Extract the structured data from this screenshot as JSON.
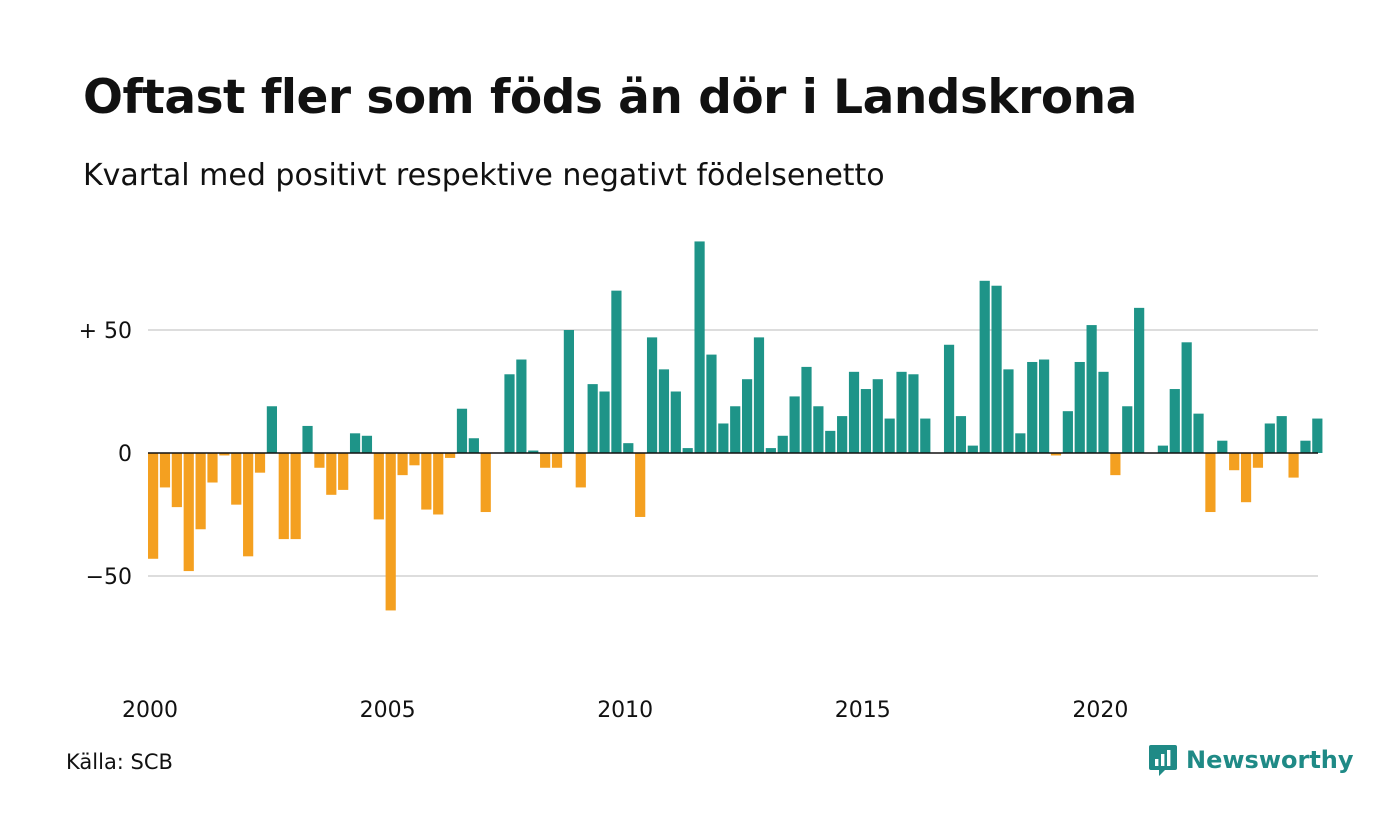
{
  "chart_data": {
    "type": "bar",
    "title": "Oftast fler som föds än dör i Landskrona",
    "subtitle": "Kvartal med positivt respektive negativt födelsenetto",
    "xlabel": "",
    "ylabel": "",
    "x_tick_labels": [
      "2000",
      "2005",
      "2010",
      "2015",
      "2020"
    ],
    "x_tick_values": [
      2000,
      2005,
      2010,
      2015,
      2020
    ],
    "y_tick_labels": [
      "+ 50",
      "0",
      "−50"
    ],
    "y_tick_values": [
      50,
      0,
      -50
    ],
    "ylim": [
      -75,
      90
    ],
    "grid": true,
    "legend": "none",
    "x_start": 2000.0,
    "x_step": 0.25,
    "values": [
      -43,
      -14,
      -22,
      -48,
      -31,
      -12,
      -1,
      -21,
      -42,
      -8,
      19,
      -35,
      -35,
      11,
      -6,
      -17,
      -15,
      8,
      7,
      -27,
      -64,
      -9,
      -5,
      -23,
      -25,
      -2,
      18,
      6,
      -24,
      0,
      32,
      38,
      1,
      -6,
      -6,
      50,
      -14,
      28,
      25,
      66,
      4,
      -26,
      47,
      34,
      25,
      2,
      86,
      40,
      12,
      19,
      30,
      47,
      2,
      7,
      23,
      35,
      19,
      9,
      15,
      33,
      26,
      30,
      14,
      33,
      32,
      14,
      0,
      44,
      15,
      3,
      70,
      68,
      34,
      8,
      37,
      38,
      -1,
      17,
      37,
      52,
      33,
      -9,
      19,
      59,
      0,
      3,
      26,
      45,
      16,
      -24,
      5,
      -7,
      -20,
      -6,
      12,
      15,
      -10,
      5,
      14
    ],
    "colors": {
      "positive": "#1e9488",
      "negative": "#f4a020"
    }
  },
  "footer": {
    "source": "Källa: SCB",
    "brand": "Newsworthy",
    "brand_icon": "newsworthy-logo-icon",
    "brand_color": "#1f8a86"
  }
}
